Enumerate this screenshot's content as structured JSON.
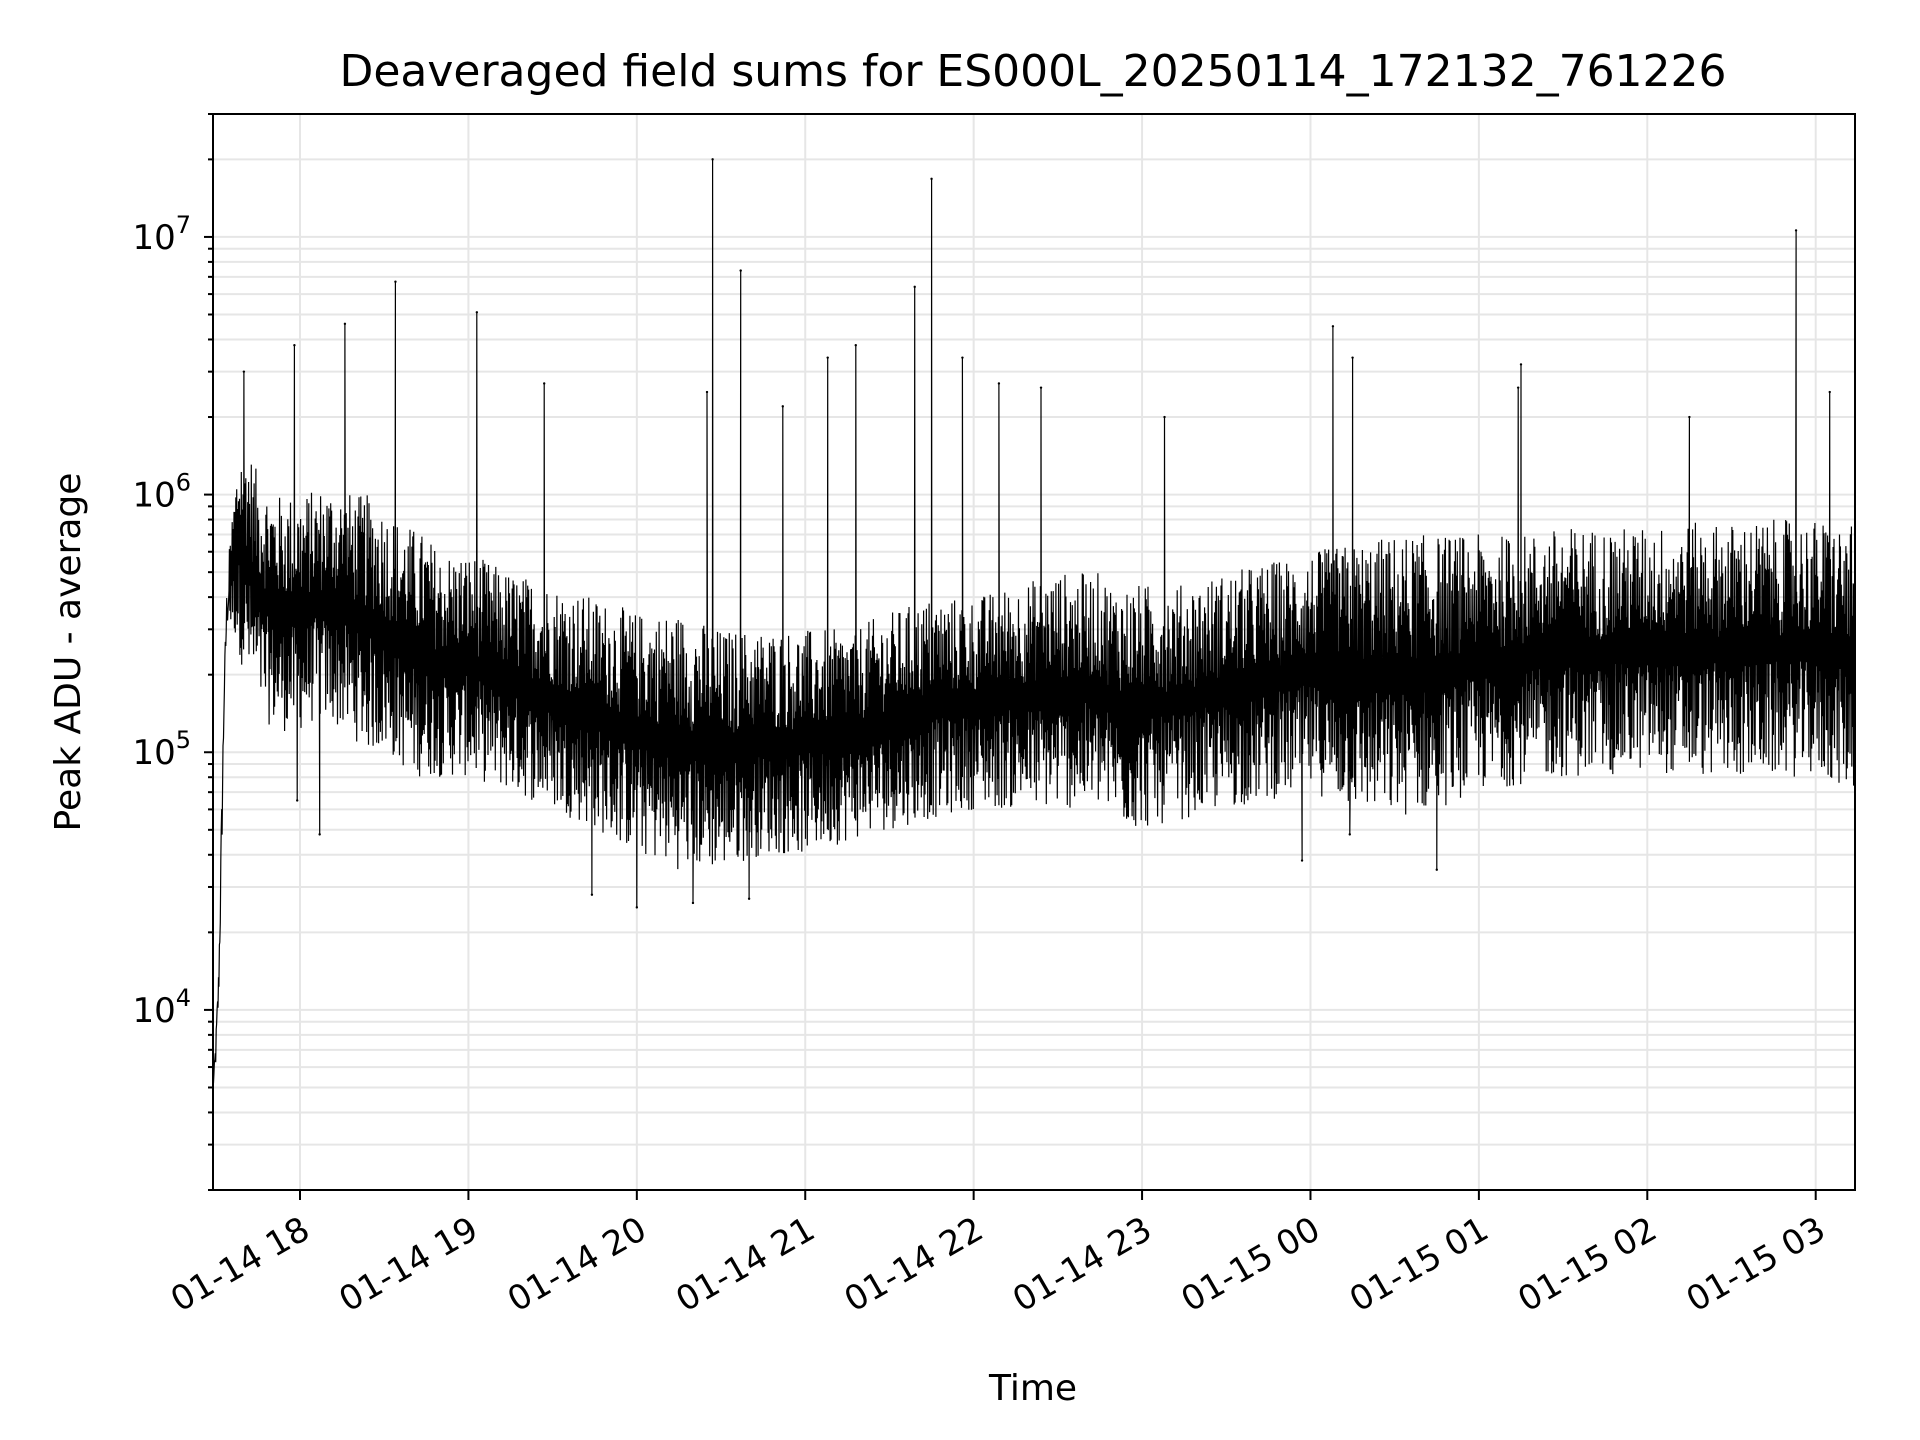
{
  "chart_data": {
    "type": "line",
    "title": "Deaveraged field sums for ES000L_20250114_172132_761226",
    "xlabel": "Time",
    "ylabel": "Peak ADU - average",
    "yscale": "log",
    "ylim": [
      2000,
      30000000
    ],
    "xlim": [
      "2025-01-14T17:29:00",
      "2025-01-15T03:14:00"
    ],
    "grid": true,
    "line_color": "#000000",
    "x_ticks": [
      {
        "time": "2025-01-14T18:00:00",
        "label": "01-14 18"
      },
      {
        "time": "2025-01-14T19:00:00",
        "label": "01-14 19"
      },
      {
        "time": "2025-01-14T20:00:00",
        "label": "01-14 20"
      },
      {
        "time": "2025-01-14T21:00:00",
        "label": "01-14 21"
      },
      {
        "time": "2025-01-14T22:00:00",
        "label": "01-14 22"
      },
      {
        "time": "2025-01-14T23:00:00",
        "label": "01-14 23"
      },
      {
        "time": "2025-01-15T00:00:00",
        "label": "01-15 00"
      },
      {
        "time": "2025-01-15T01:00:00",
        "label": "01-15 01"
      },
      {
        "time": "2025-01-15T02:00:00",
        "label": "01-15 02"
      },
      {
        "time": "2025-01-15T03:00:00",
        "label": "01-15 03"
      }
    ],
    "y_ticks": [
      {
        "value": 10000,
        "base": "10",
        "exp": "4"
      },
      {
        "value": 100000,
        "base": "10",
        "exp": "5"
      },
      {
        "value": 1000000,
        "base": "10",
        "exp": "6"
      },
      {
        "value": 10000000,
        "base": "10",
        "exp": "7"
      }
    ],
    "series": [
      {
        "x": [
          "2025-01-14T17:29:00",
          "2025-01-14T17:30:00",
          "2025-01-14T17:31:00",
          "2025-01-14T17:32:00",
          "2025-01-14T17:33:00",
          "2025-01-14T17:34:00",
          "2025-01-14T17:36:00",
          "2025-01-14T17:38:00",
          "2025-01-14T17:40:00",
          "2025-01-14T17:42:00",
          "2025-01-14T17:45:00",
          "2025-01-14T17:48:00",
          "2025-01-14T17:52:00",
          "2025-01-14T17:56:00",
          "2025-01-14T18:00:00",
          "2025-01-14T18:05:00",
          "2025-01-14T18:10:00",
          "2025-01-14T18:15:00",
          "2025-01-14T18:20:00",
          "2025-01-14T18:25:00",
          "2025-01-14T18:30:00",
          "2025-01-14T18:35:00",
          "2025-01-14T18:40:00",
          "2025-01-14T18:45:00",
          "2025-01-14T18:50:00",
          "2025-01-14T19:00:00",
          "2025-01-14T19:15:00",
          "2025-01-14T19:30:00",
          "2025-01-14T19:45:00",
          "2025-01-14T20:00:00",
          "2025-01-14T20:15:00",
          "2025-01-14T20:30:00",
          "2025-01-14T20:45:00",
          "2025-01-14T21:00:00",
          "2025-01-14T21:15:00",
          "2025-01-14T21:30:00",
          "2025-01-14T21:45:00",
          "2025-01-14T22:00:00",
          "2025-01-14T22:15:00",
          "2025-01-14T22:30:00",
          "2025-01-14T22:45:00",
          "2025-01-14T22:50:00",
          "2025-01-14T22:55:00",
          "2025-01-14T23:00:00",
          "2025-01-14T23:15:00",
          "2025-01-14T23:30:00",
          "2025-01-14T23:45:00",
          "2025-01-15T00:00:00",
          "2025-01-15T00:15:00",
          "2025-01-15T00:30:00",
          "2025-01-15T00:45:00",
          "2025-01-15T01:00:00",
          "2025-01-15T01:15:00",
          "2025-01-15T01:30:00",
          "2025-01-15T01:45:00",
          "2025-01-15T02:00:00",
          "2025-01-15T02:15:00",
          "2025-01-15T02:30:00",
          "2025-01-15T02:45:00",
          "2025-01-15T03:00:00",
          "2025-01-15T03:14:00"
        ],
        "high": [
          5000,
          8000,
          15000,
          60000,
          200000,
          480000,
          900000,
          1500000,
          1800000,
          1500000,
          1200000,
          1100000,
          1000000,
          1000000,
          1000000,
          1050000,
          1100000,
          1050000,
          1000000,
          1000000,
          900000,
          800000,
          750000,
          700000,
          600000,
          600000,
          500000,
          450000,
          400000,
          350000,
          350000,
          300000,
          300000,
          300000,
          300000,
          350000,
          400000,
          400000,
          450000,
          500000,
          500000,
          450000,
          450000,
          450000,
          450000,
          500000,
          550000,
          600000,
          650000,
          700000,
          700000,
          700000,
          700000,
          750000,
          750000,
          750000,
          780000,
          780000,
          800000,
          800000,
          750000
        ],
        "low": [
          5000,
          6000,
          10000,
          30000,
          150000,
          300000,
          300000,
          250000,
          200000,
          180000,
          150000,
          130000,
          120000,
          120000,
          120000,
          130000,
          130000,
          120000,
          110000,
          100000,
          100000,
          90000,
          80000,
          80000,
          80000,
          80000,
          70000,
          60000,
          50000,
          40000,
          35000,
          35000,
          40000,
          40000,
          45000,
          50000,
          55000,
          60000,
          60000,
          60000,
          60000,
          55000,
          50000,
          50000,
          55000,
          60000,
          65000,
          70000,
          60000,
          55000,
          60000,
          70000,
          75000,
          80000,
          80000,
          85000,
          80000,
          80000,
          80000,
          80000,
          70000
        ],
        "spikes": [
          {
            "x": "2025-01-14T17:40:00",
            "y": 3000000
          },
          {
            "x": "2025-01-14T17:58:00",
            "y": 3800000
          },
          {
            "x": "2025-01-14T18:16:00",
            "y": 4600000
          },
          {
            "x": "2025-01-14T18:34:00",
            "y": 6700000
          },
          {
            "x": "2025-01-14T19:03:00",
            "y": 5100000
          },
          {
            "x": "2025-01-14T19:27:00",
            "y": 2700000
          },
          {
            "x": "2025-01-14T20:25:00",
            "y": 2500000
          },
          {
            "x": "2025-01-14T20:27:00",
            "y": 20000000
          },
          {
            "x": "2025-01-14T20:37:00",
            "y": 7400000
          },
          {
            "x": "2025-01-14T20:52:00",
            "y": 2200000
          },
          {
            "x": "2025-01-14T21:08:00",
            "y": 3400000
          },
          {
            "x": "2025-01-14T21:18:00",
            "y": 3800000
          },
          {
            "x": "2025-01-14T21:39:00",
            "y": 6400000
          },
          {
            "x": "2025-01-14T21:45:00",
            "y": 16800000
          },
          {
            "x": "2025-01-14T21:56:00",
            "y": 3400000
          },
          {
            "x": "2025-01-14T22:09:00",
            "y": 2700000
          },
          {
            "x": "2025-01-14T22:24:00",
            "y": 2600000
          },
          {
            "x": "2025-01-14T23:08:00",
            "y": 2000000
          },
          {
            "x": "2025-01-15T00:08:00",
            "y": 4500000
          },
          {
            "x": "2025-01-15T00:15:00",
            "y": 3400000
          },
          {
            "x": "2025-01-15T01:14:00",
            "y": 2600000
          },
          {
            "x": "2025-01-15T01:15:00",
            "y": 3200000
          },
          {
            "x": "2025-01-15T02:15:00",
            "y": 2000000
          },
          {
            "x": "2025-01-15T02:53:00",
            "y": 10600000
          },
          {
            "x": "2025-01-15T03:05:00",
            "y": 2500000
          }
        ],
        "dips": [
          {
            "x": "2025-01-14T17:59:00",
            "y": 65000
          },
          {
            "x": "2025-01-14T18:07:00",
            "y": 48000
          },
          {
            "x": "2025-01-14T19:44:00",
            "y": 28000
          },
          {
            "x": "2025-01-14T20:00:00",
            "y": 25000
          },
          {
            "x": "2025-01-14T20:20:00",
            "y": 26000
          },
          {
            "x": "2025-01-14T20:40:00",
            "y": 27000
          },
          {
            "x": "2025-01-15T00:14:00",
            "y": 48000
          },
          {
            "x": "2025-01-15T00:45:00",
            "y": 35000
          },
          {
            "x": "2025-01-14T23:57:00",
            "y": 38000
          }
        ]
      }
    ]
  }
}
